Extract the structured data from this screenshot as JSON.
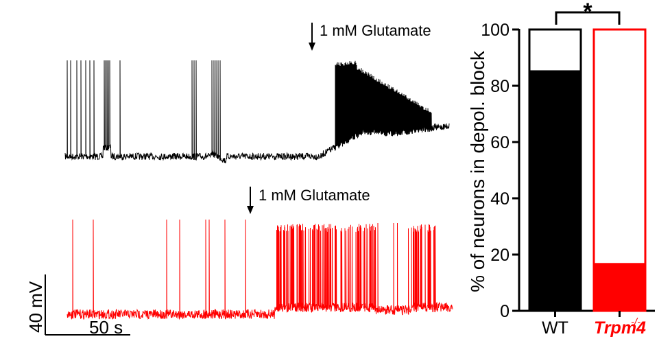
{
  "colors": {
    "wt": "#000000",
    "ko": "#ff0000",
    "axis": "#000000"
  },
  "traces": {
    "wt": {
      "stimulus_label": "1 mM Glutamate"
    },
    "ko": {
      "stimulus_label": "1 mM Glutamate"
    },
    "scalebar": {
      "voltage_label": "40 mV",
      "time_label": "50 s"
    }
  },
  "chart_data": {
    "type": "bar",
    "categories": [
      "WT",
      "Trpm4"
    ],
    "category_superscript": [
      "",
      "-/-"
    ],
    "series": [
      {
        "values": [
          85.5,
          17
        ]
      }
    ],
    "ylabel": "% of neurons in depol. block",
    "ylim": [
      0,
      100
    ],
    "yticks": [
      "0",
      "20",
      "40",
      "60",
      "80",
      "100"
    ],
    "significance": "*",
    "bar_colors": [
      "#000000",
      "#ff0000"
    ]
  }
}
